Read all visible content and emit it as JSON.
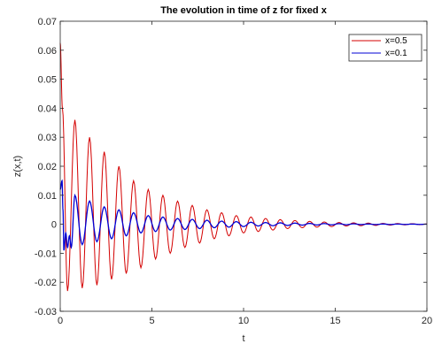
{
  "chart_data": {
    "type": "line",
    "title": "The evolution in time of z for fixed x",
    "xlabel": "t",
    "ylabel": "z(x,t)",
    "xlim": [
      0,
      20
    ],
    "ylim": [
      -0.03,
      0.07
    ],
    "xticks": [
      0,
      5,
      10,
      15,
      20
    ],
    "yticks": [
      -0.03,
      -0.02,
      -0.01,
      0,
      0.01,
      0.02,
      0.03,
      0.04,
      0.05,
      0.06,
      0.07
    ],
    "xtick_labels": [
      "0",
      "5",
      "10",
      "15",
      "20"
    ],
    "ytick_labels": [
      "-0.03",
      "-0.02",
      "-0.01",
      "0",
      "0.01",
      "0.02",
      "0.03",
      "0.04",
      "0.05",
      "0.06",
      "0.07"
    ],
    "grid": false,
    "legend_position": "top-right",
    "series": [
      {
        "name": "x=0.5",
        "color": "#d40000",
        "x": [
          0,
          0.12,
          0.4,
          0.8,
          1.2,
          1.6,
          2.0,
          2.4,
          2.8,
          3.2,
          3.6,
          4.0,
          4.4,
          4.8,
          5.2,
          5.6,
          6.0,
          6.4,
          6.8,
          7.2,
          7.6,
          8.0,
          8.4,
          8.8,
          9.2,
          9.6,
          10.0,
          10.4,
          10.8,
          11.2,
          11.6,
          12.0,
          12.4,
          12.8,
          13.2,
          13.6,
          14.0,
          14.4,
          14.8,
          15.2,
          15.6,
          16.0,
          16.4,
          16.8,
          17.2,
          17.6,
          18.0,
          18.4,
          18.8,
          19.2,
          19.6,
          20.0
        ],
        "y": [
          0.0625,
          0.04,
          -0.023,
          0.036,
          -0.022,
          0.03,
          -0.021,
          0.025,
          -0.019,
          0.02,
          -0.017,
          0.015,
          -0.015,
          0.012,
          -0.012,
          0.01,
          -0.01,
          0.008,
          -0.008,
          0.0065,
          -0.0065,
          0.005,
          -0.005,
          0.004,
          -0.004,
          0.003,
          -0.003,
          0.0025,
          -0.0025,
          0.002,
          -0.002,
          0.0016,
          -0.0015,
          0.0013,
          -0.0012,
          0.001,
          -0.001,
          0.0008,
          -0.0008,
          0.0006,
          -0.0006,
          0.0005,
          -0.0005,
          0.0004,
          -0.0004,
          0.0003,
          -0.0003,
          0.00025,
          -0.0002,
          0.0002,
          -0.00015,
          0.0001
        ]
      },
      {
        "name": "x=0.1",
        "color": "#0000d4",
        "x": [
          0,
          0.1,
          0.15,
          0.2,
          0.3,
          0.4,
          0.5,
          0.6,
          0.8,
          1.2,
          1.6,
          2.0,
          2.4,
          2.8,
          3.2,
          3.6,
          4.0,
          4.4,
          4.8,
          5.2,
          5.6,
          6.0,
          6.4,
          6.8,
          7.2,
          7.6,
          8.0,
          8.4,
          8.8,
          9.2,
          9.6,
          10.0,
          10.4,
          10.8,
          11.2,
          11.6,
          12.0,
          12.4,
          12.8,
          13.2,
          13.6,
          14.0,
          14.4,
          14.8,
          15.2,
          15.6,
          16.0,
          16.4,
          16.8,
          17.2,
          17.6,
          18.0,
          18.4,
          18.8,
          19.2,
          19.6,
          20.0
        ],
        "y": [
          0.012,
          0.015,
          0.005,
          -0.009,
          -0.003,
          -0.008,
          -0.004,
          -0.008,
          0.01,
          -0.007,
          0.008,
          -0.006,
          0.006,
          -0.005,
          0.005,
          -0.004,
          0.004,
          -0.003,
          0.003,
          -0.0025,
          0.0025,
          -0.002,
          0.002,
          -0.0018,
          0.0017,
          -0.0015,
          0.0014,
          -0.0012,
          0.0011,
          -0.001,
          0.0009,
          -0.0008,
          0.0007,
          -0.0006,
          0.0006,
          -0.0005,
          0.0005,
          -0.0004,
          0.0004,
          -0.0003,
          0.0003,
          -0.00025,
          0.00025,
          -0.0002,
          0.0002,
          -0.00015,
          0.00015,
          -0.0001,
          0.0001,
          -0.0001,
          0.0001,
          -8e-05,
          8e-05,
          -6e-05,
          6e-05,
          -5e-05,
          4e-05
        ]
      }
    ]
  }
}
